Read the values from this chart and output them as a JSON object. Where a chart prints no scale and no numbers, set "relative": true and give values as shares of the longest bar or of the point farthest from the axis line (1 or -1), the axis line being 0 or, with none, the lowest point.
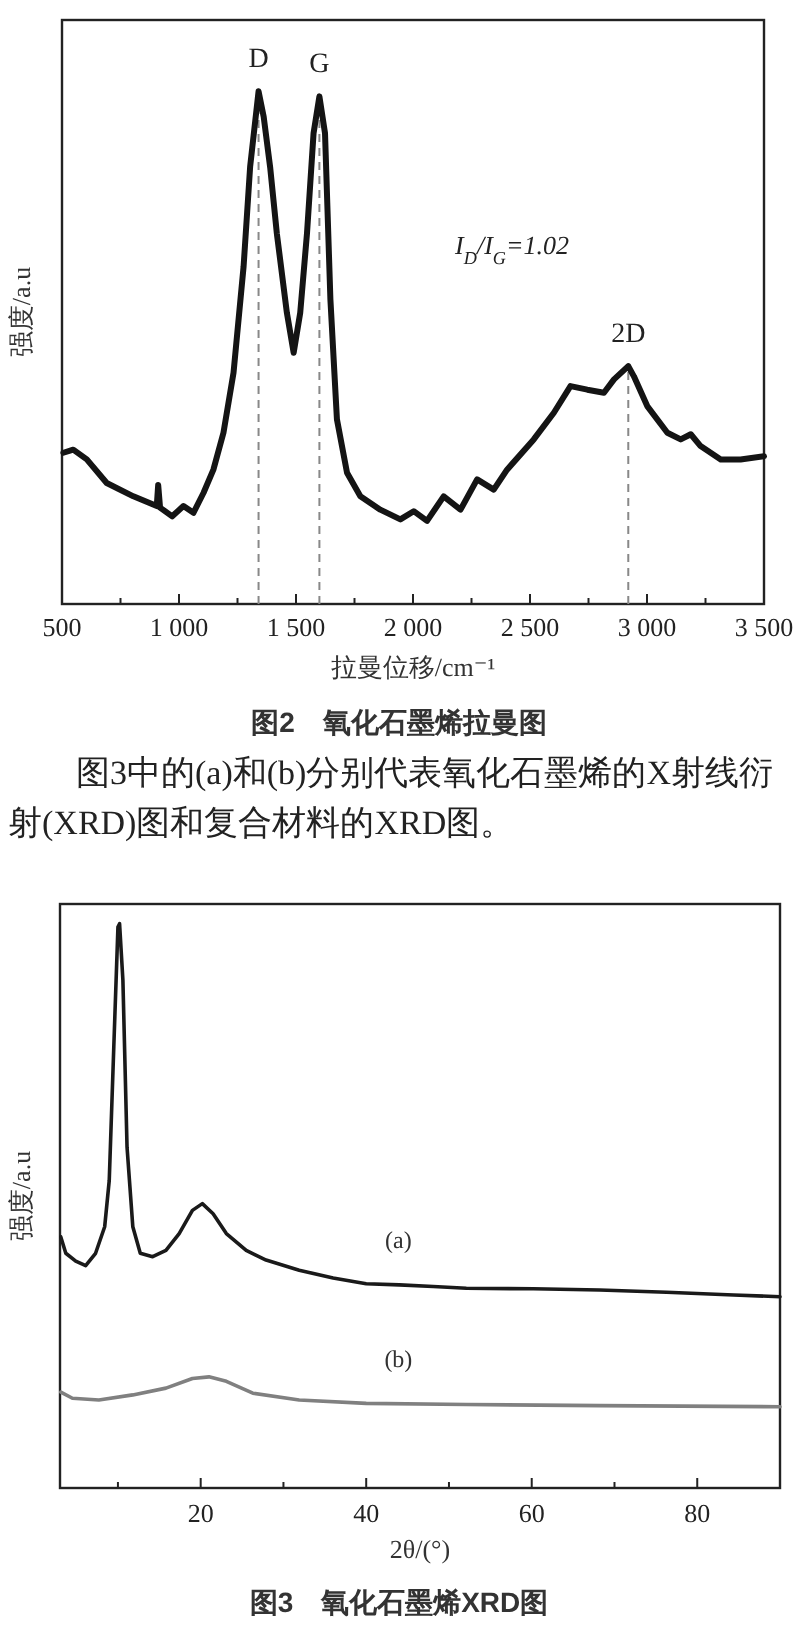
{
  "chart_data": [
    {
      "type": "line",
      "relative": true,
      "xlabel": "拉曼位移/cm⁻¹",
      "ylabel": "强度/a.u",
      "xlim": [
        500,
        3500
      ],
      "xticks": [
        500,
        {
          "value": 750,
          "label": null
        },
        {
          "value": 1000,
          "label": "1 000"
        },
        {
          "value": 1250,
          "label": null
        },
        {
          "value": 1500,
          "label": "1 500"
        },
        {
          "value": 1750,
          "label": null
        },
        {
          "value": 2000,
          "label": "2 000"
        },
        {
          "value": 2250,
          "label": null
        },
        {
          "value": 2500,
          "label": "2 500"
        },
        {
          "value": 2750,
          "label": null
        },
        {
          "value": 3000,
          "label": "3 000"
        },
        {
          "value": 3250,
          "label": null
        },
        {
          "value": 3500,
          "label": "3 500"
        }
      ],
      "series": [
        {
          "color": "#141414",
          "x": [
            506,
            548,
            606,
            691,
            805,
            905,
            911,
            919,
            971,
            1019,
            1062,
            1105,
            1147,
            1190,
            1233,
            1276,
            1304,
            1340,
            1362,
            1390,
            1418,
            1461,
            1490,
            1518,
            1547,
            1575,
            1600,
            1624,
            1647,
            1675,
            1718,
            1775,
            1860,
            1946,
            2003,
            2060,
            2131,
            2203,
            2274,
            2345,
            2402,
            2516,
            2602,
            2673,
            2745,
            2816,
            2859,
            2920,
            2944,
            3001,
            3087,
            3144,
            3187,
            3229,
            3315,
            3400,
            3500
          ],
          "values": [
            0.295,
            0.301,
            0.282,
            0.236,
            0.21,
            0.191,
            0.232,
            0.188,
            0.171,
            0.191,
            0.178,
            0.217,
            0.262,
            0.334,
            0.451,
            0.658,
            0.853,
            1.0,
            0.95,
            0.85,
            0.723,
            0.568,
            0.49,
            0.568,
            0.723,
            0.918,
            0.99,
            0.918,
            0.594,
            0.36,
            0.256,
            0.21,
            0.184,
            0.165,
            0.181,
            0.162,
            0.21,
            0.184,
            0.243,
            0.223,
            0.262,
            0.321,
            0.373,
            0.425,
            0.418,
            0.412,
            0.438,
            0.464,
            0.444,
            0.386,
            0.334,
            0.321,
            0.331,
            0.308,
            0.282,
            0.282,
            0.288
          ]
        }
      ],
      "ref_lines": [
        {
          "axis": "x",
          "value": 1340,
          "color": "#888888",
          "line_style": "dashed"
        },
        {
          "axis": "x",
          "value": 1600,
          "color": "#888888",
          "line_style": "dashed"
        },
        {
          "axis": "x",
          "value": 2920,
          "color": "#888888",
          "line_style": "dashed"
        }
      ],
      "annotations": [
        {
          "text": "D",
          "x": 1340,
          "y": 1.0
        },
        {
          "text": "G",
          "x": 1600,
          "y": 0.99
        },
        {
          "text": "2D",
          "x": 2920,
          "y": 0.464
        },
        "I$_{D}$/I$_{G}$=1.02",
        "图2　氧化石墨烯拉曼图",
        "图3中的(a)和(b)分别代表氧化石墨烯的X射线衍射(XRD)图和复合材料的XRD图。"
      ]
    },
    {
      "type": "line",
      "relative": true,
      "xlabel": "2θ/(°)",
      "ylabel": "强度/a.u",
      "xlim": [
        3,
        90
      ],
      "xticks": [
        {
          "value": 10,
          "label": null
        },
        20,
        {
          "value": 30,
          "label": null
        },
        40,
        {
          "value": 50,
          "label": null
        },
        60,
        {
          "value": 70,
          "label": null
        },
        80
      ],
      "series": [
        {
          "name": "(a)",
          "color": "#1a1a1a",
          "x": [
            3.1,
            3.7,
            4.9,
            6.1,
            7.3,
            8.4,
            8.95,
            9.5,
            10.0,
            10.2,
            10.6,
            11.1,
            11.8,
            12.7,
            14.2,
            15.8,
            17.4,
            19.0,
            20.2,
            21.5,
            23.1,
            25.5,
            27.9,
            31.9,
            36.0,
            40.0,
            44.0,
            48.1,
            52.1,
            60.2,
            68.2,
            76.3,
            84.4,
            90.0
          ],
          "values": [
            0.445,
            0.416,
            0.402,
            0.394,
            0.416,
            0.463,
            0.545,
            0.782,
            0.994,
            1.0,
            0.9,
            0.604,
            0.463,
            0.416,
            0.41,
            0.421,
            0.451,
            0.492,
            0.504,
            0.486,
            0.451,
            0.421,
            0.404,
            0.386,
            0.372,
            0.362,
            0.36,
            0.357,
            0.354,
            0.353,
            0.351,
            0.347,
            0.342,
            0.339
          ]
        },
        {
          "name": "(b)",
          "color": "#808080",
          "x": [
            3.1,
            4.5,
            7.7,
            11.8,
            15.8,
            19.0,
            21.0,
            23.1,
            26.3,
            31.9,
            40.0,
            52.1,
            68.2,
            90.0
          ],
          "values": [
            0.17,
            0.159,
            0.156,
            0.165,
            0.177,
            0.194,
            0.197,
            0.189,
            0.168,
            0.156,
            0.15,
            0.148,
            0.146,
            0.144
          ]
        }
      ],
      "annotations": [
        "图3　氧化石墨烯XRD图"
      ]
    }
  ]
}
